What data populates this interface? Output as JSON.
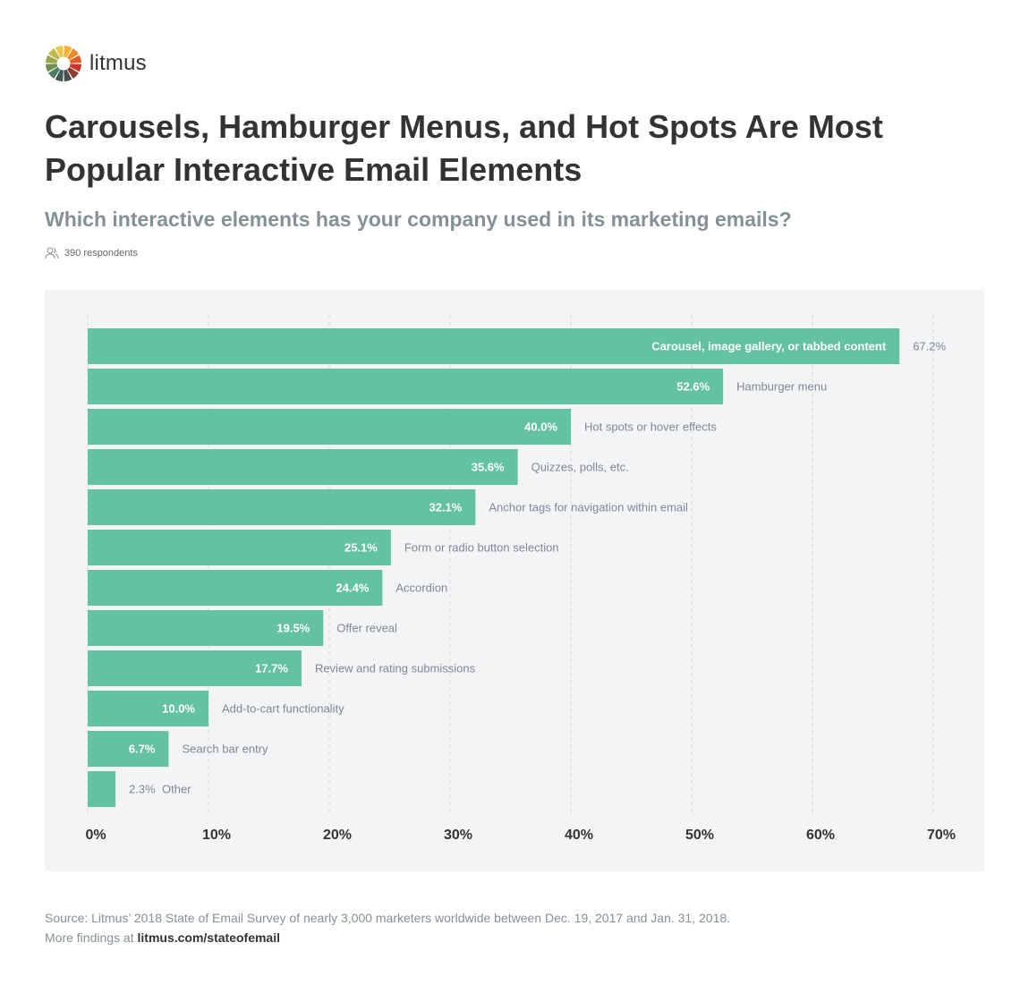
{
  "brand": {
    "name": "litmus"
  },
  "title": "Carousels, Hamburger Menus, and Hot Spots Are Most Popular Interactive Email Elements",
  "subtitle": "Which interactive elements has your company used in its marketing emails?",
  "respondents": "390 respondents",
  "footer": {
    "source": "Source: Litmus’ 2018 State of Email Survey of nearly 3,000 marketers worldwide between Dec. 19, 2017 and Jan. 31, 2018.",
    "more_prefix": "More findings at ",
    "link": "litmus.com/stateofemail"
  },
  "colors": {
    "bar": "#63c2a0",
    "panel": "#f3f4f6",
    "grid": "#d5d8dd",
    "category_label": "#7d8898",
    "value_label_inside": "#ffffff",
    "axis_label": "#333333",
    "subtitle": "#849195"
  },
  "chart_data": {
    "type": "bar",
    "orientation": "horizontal",
    "categories": [
      "Carousel, image gallery, or tabbed content",
      "Hamburger menu",
      "Hot spots or hover effects",
      "Quizzes, polls, etc.",
      "Anchor tags for navigation within email",
      "Form or radio button selection",
      "Accordion",
      "Offer reveal",
      "Review and rating submissions",
      "Add-to-cart functionality",
      "Search bar entry",
      "Other"
    ],
    "values": [
      67.2,
      52.6,
      40.0,
      35.6,
      32.1,
      25.1,
      24.4,
      19.5,
      17.7,
      10.0,
      6.7,
      2.3
    ],
    "value_labels": [
      "67.2%",
      "52.6%",
      "40.0%",
      "35.6%",
      "32.1%",
      "25.1%",
      "24.4%",
      "19.5%",
      "17.7%",
      "10.0%",
      "6.7%",
      "2.3%"
    ],
    "xlim": [
      0,
      70
    ],
    "xticks": [
      0,
      10,
      20,
      30,
      40,
      50,
      60,
      70
    ],
    "xtick_labels": [
      "0%",
      "10%",
      "20%",
      "30%",
      "40%",
      "50%",
      "60%",
      "70%"
    ],
    "grid": true
  }
}
